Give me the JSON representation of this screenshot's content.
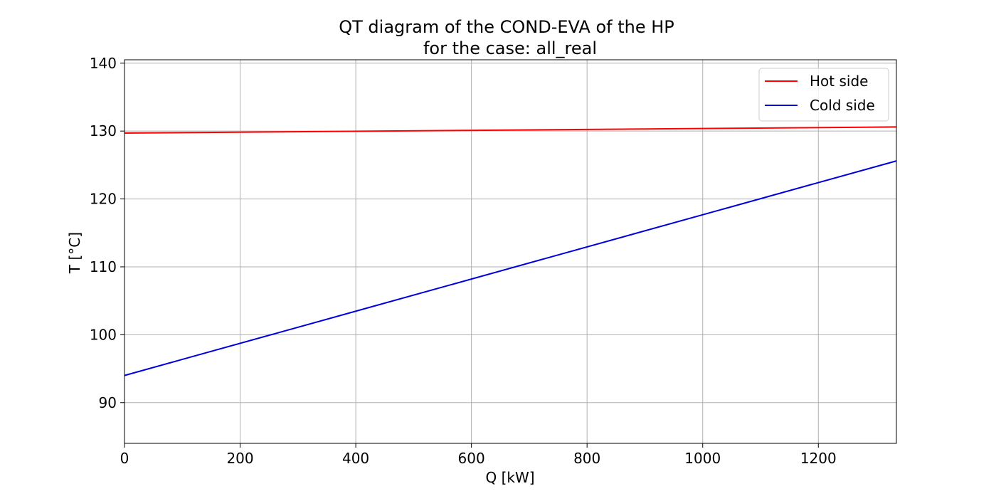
{
  "chart_data": {
    "type": "line",
    "title_line1": "QT diagram of the COND-EVA of the HP",
    "title_line2": "for the case: all_real",
    "xlabel": "Q [kW]",
    "ylabel": "T [°C]",
    "xlim": [
      0,
      1335
    ],
    "ylim": [
      84,
      140.5
    ],
    "x_ticks": [
      0,
      200,
      400,
      600,
      800,
      1000,
      1200
    ],
    "y_ticks": [
      90,
      100,
      110,
      120,
      130,
      140
    ],
    "x_tick_labels": [
      "0",
      "200",
      "400",
      "600",
      "800",
      "1000",
      "1200"
    ],
    "y_tick_labels": [
      "90",
      "100",
      "110",
      "120",
      "130",
      "140"
    ],
    "grid": true,
    "legend_position": "top-right",
    "series": [
      {
        "name": "Hot side",
        "color": "#ff0000",
        "x": [
          0,
          1335
        ],
        "y": [
          129.7,
          130.6
        ]
      },
      {
        "name": "Cold side",
        "color": "#0000dd",
        "x": [
          0,
          1335
        ],
        "y": [
          94.0,
          125.6
        ]
      }
    ]
  }
}
